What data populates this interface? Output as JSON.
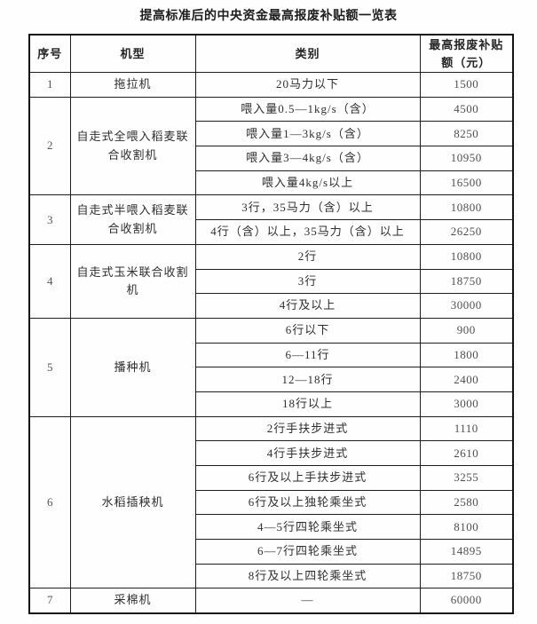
{
  "title": "提高标准后的中央资金最高报废补贴额一览表",
  "table": {
    "headers": [
      "序号",
      "机型",
      "类别",
      "最高报废补贴额（元）"
    ],
    "groups": [
      {
        "no": "1",
        "machine": "拖拉机",
        "rows": [
          {
            "category": "20马力以下",
            "amount": "1500"
          }
        ]
      },
      {
        "no": "2",
        "machine": "自走式全喂入稻麦联合收割机",
        "rows": [
          {
            "category": "喂入量0.5—1kg/s（含）",
            "amount": "4500"
          },
          {
            "category": "喂入量1—3kg/s（含）",
            "amount": "8250"
          },
          {
            "category": "喂入量3—4kg/s（含）",
            "amount": "10950"
          },
          {
            "category": "喂入量4kg/s以上",
            "amount": "16500"
          }
        ]
      },
      {
        "no": "3",
        "machine": "自走式半喂入稻麦联合收割机",
        "rows": [
          {
            "category": "3行，35马力（含）以上",
            "amount": "10800"
          },
          {
            "category": "4行（含）以上，35马力（含）以上",
            "amount": "26250"
          }
        ]
      },
      {
        "no": "4",
        "machine": "自走式玉米联合收割机",
        "rows": [
          {
            "category": "2行",
            "amount": "10800"
          },
          {
            "category": "3行",
            "amount": "18750"
          },
          {
            "category": "4行及以上",
            "amount": "30000"
          }
        ]
      },
      {
        "no": "5",
        "machine": "播种机",
        "rows": [
          {
            "category": "6行以下",
            "amount": "900"
          },
          {
            "category": "6—11行",
            "amount": "1800"
          },
          {
            "category": "12—18行",
            "amount": "2400"
          },
          {
            "category": "18行以上",
            "amount": "3000"
          }
        ]
      },
      {
        "no": "6",
        "machine": "水稻插秧机",
        "rows": [
          {
            "category": "2行手扶步进式",
            "amount": "1110"
          },
          {
            "category": "4行手扶步进式",
            "amount": "2610"
          },
          {
            "category": "6行及以上手扶步进式",
            "amount": "3255"
          },
          {
            "category": "6行及以上独轮乘坐式",
            "amount": "2580"
          },
          {
            "category": "4—5行四轮乘坐式",
            "amount": "8100"
          },
          {
            "category": "6—7行四轮乘坐式",
            "amount": "14895"
          },
          {
            "category": "8行及以上四轮乘坐式",
            "amount": "18750"
          }
        ]
      },
      {
        "no": "7",
        "machine": "采棉机",
        "rows": [
          {
            "category": "—",
            "amount": "60000"
          }
        ]
      }
    ]
  }
}
